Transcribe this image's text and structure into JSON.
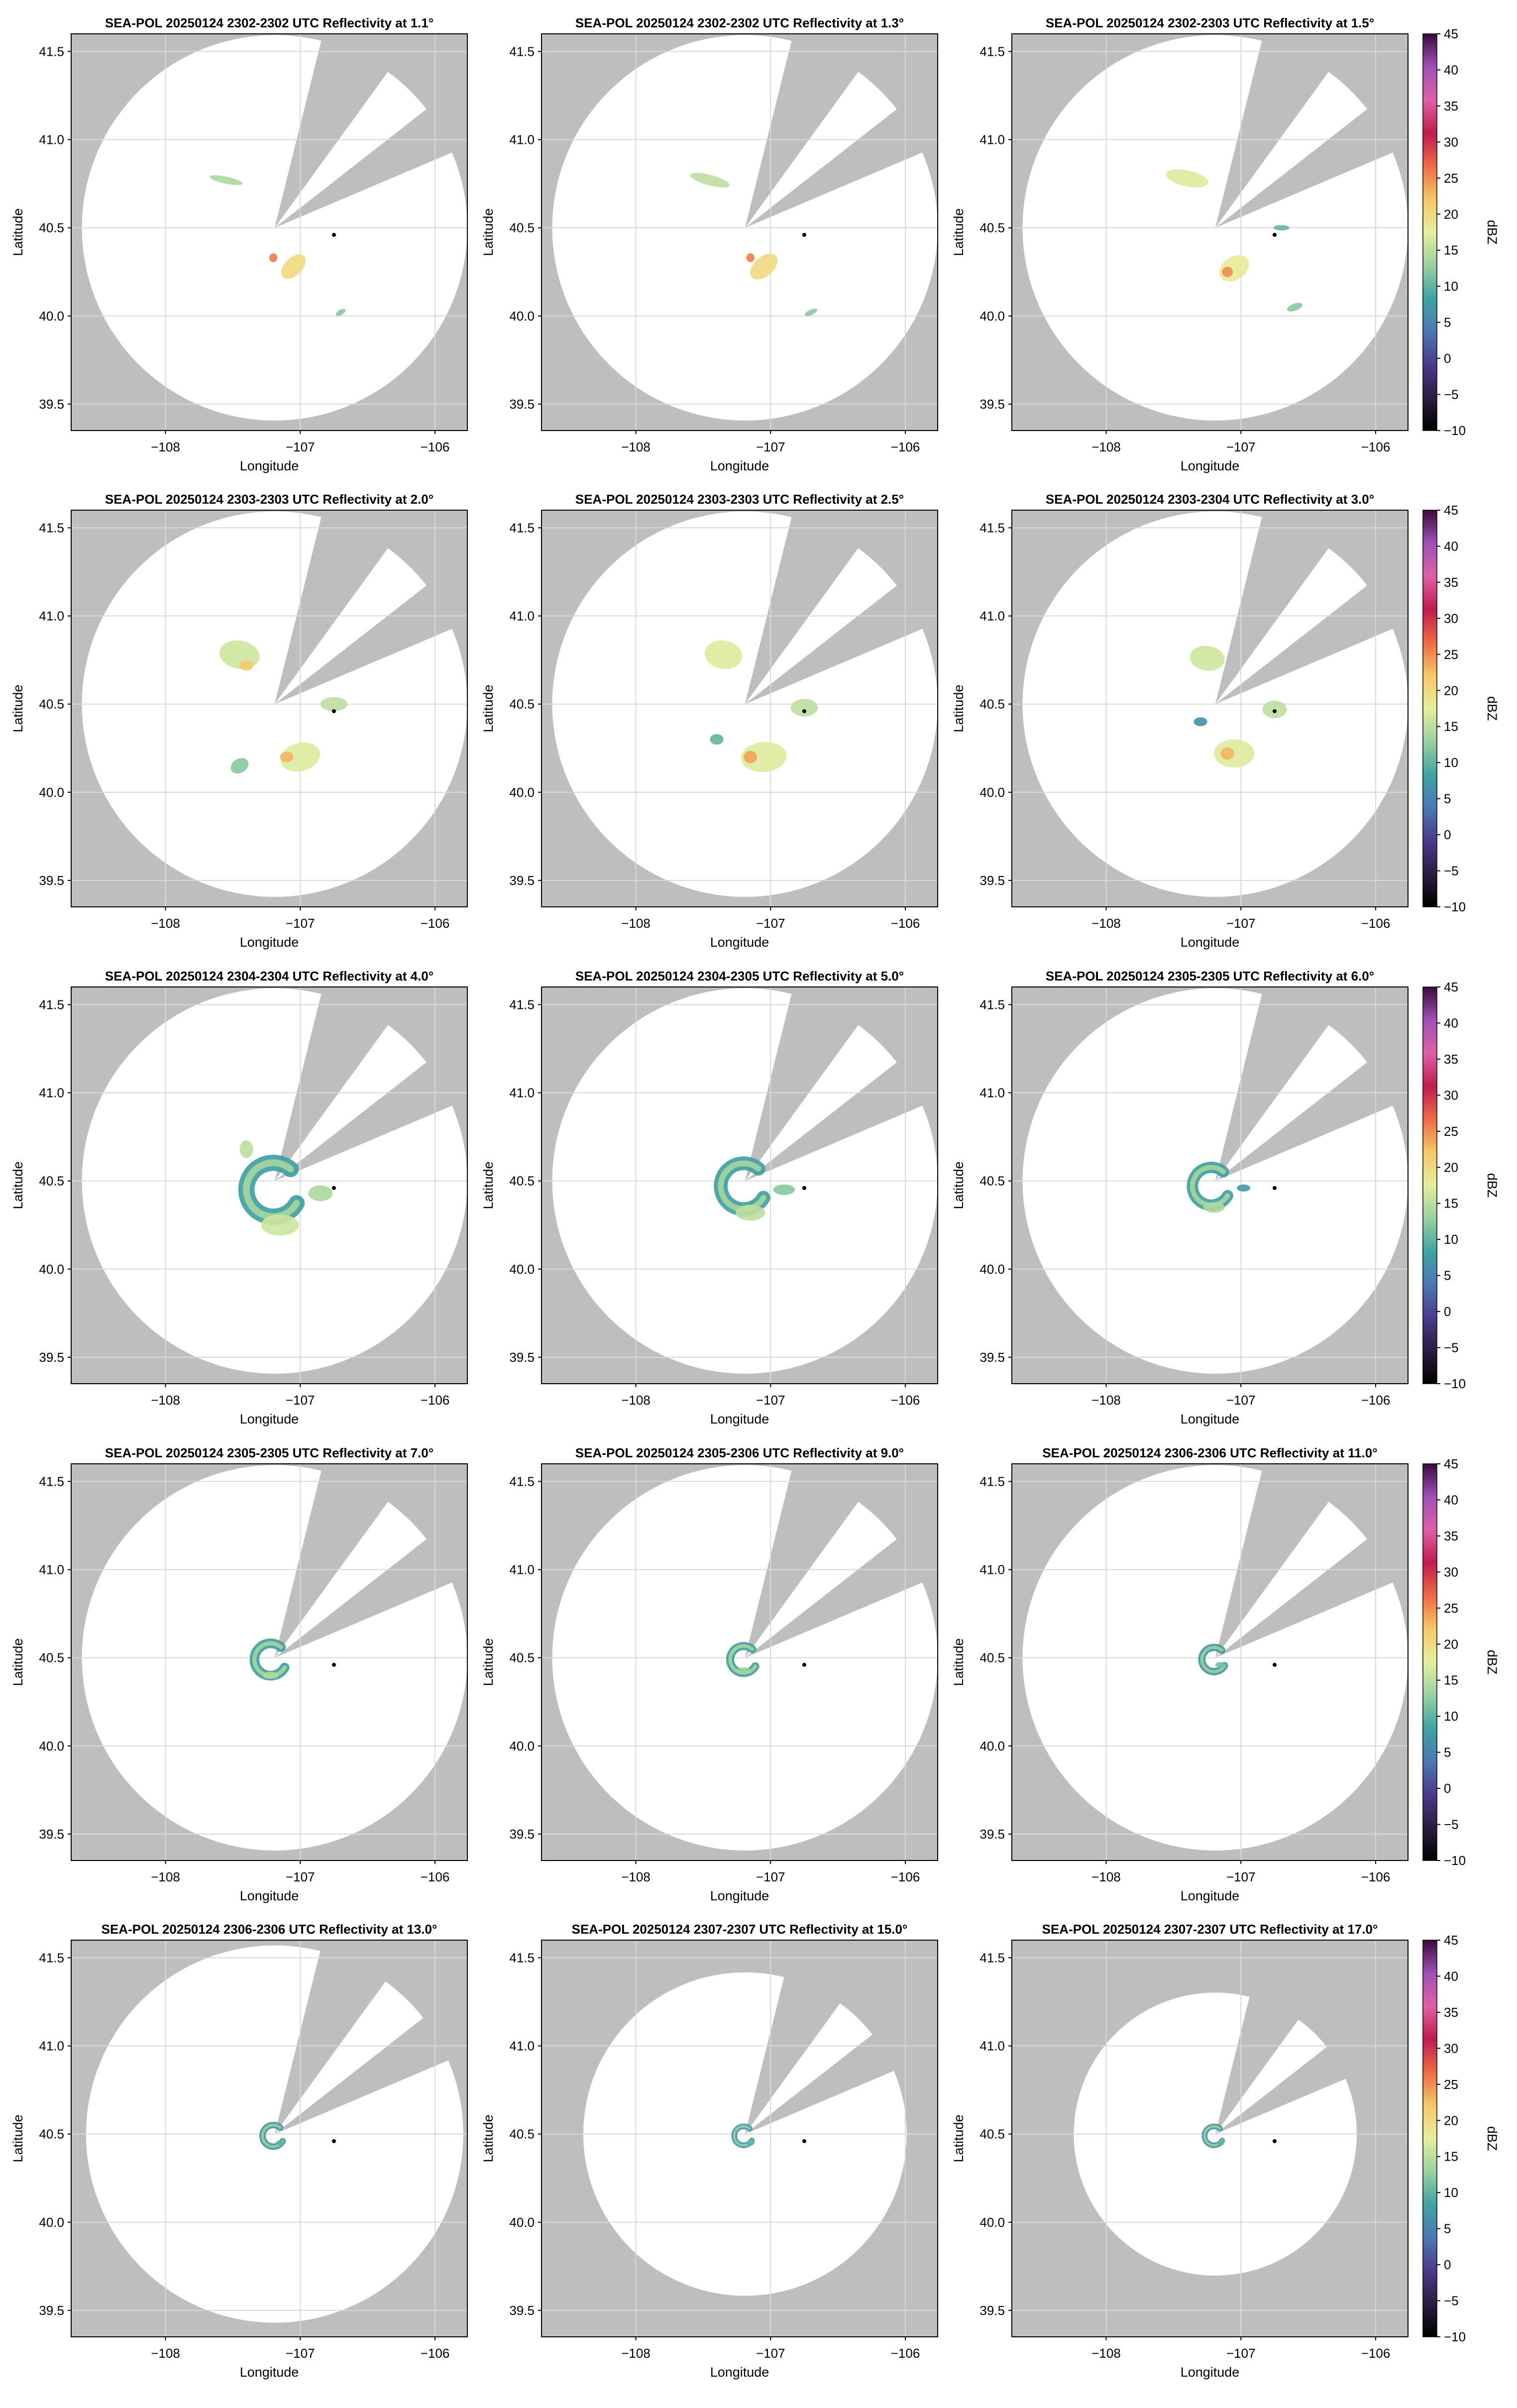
{
  "figure": {
    "background": "#ffffff",
    "outside_color": "#bebebe",
    "inside_color": "#ffffff",
    "grid_color": "#d9d9d9",
    "marker_color": "#000000"
  },
  "chart_data": {
    "type": "heatmap",
    "layout": {
      "rows": 5,
      "cols": 3
    },
    "radar_site": {
      "lon": -107.19,
      "lat": 40.5
    },
    "marker": {
      "lon": -106.75,
      "lat": 40.46
    },
    "blocked_sector_deg": [
      [
        14,
        36
      ],
      [
        52,
        67
      ]
    ],
    "xlabel": "Longitude",
    "ylabel": "Latitude",
    "xlim": [
      -108.7,
      -105.76
    ],
    "ylim": [
      39.35,
      41.6
    ],
    "xticks": [
      -108,
      -107,
      -106
    ],
    "xticklabels": [
      "−108",
      "−107",
      "−106"
    ],
    "yticks": [
      39.5,
      40.0,
      40.5,
      41.0,
      41.5
    ],
    "yticklabels": [
      "39.5",
      "40.0",
      "40.5",
      "41.0",
      "41.5"
    ],
    "grid": true,
    "colorbar": {
      "label": "dBZ",
      "vmin": -10,
      "vmax": 45,
      "ticks": [
        -10,
        -5,
        0,
        5,
        10,
        15,
        20,
        25,
        30,
        35,
        40,
        45
      ],
      "ticklabels": [
        "−10",
        "−5",
        "0",
        "5",
        "10",
        "15",
        "20",
        "25",
        "30",
        "35",
        "40",
        "45"
      ],
      "colors": [
        "#000000",
        "#2b1d3f",
        "#4b3a8f",
        "#4a78b5",
        "#3fa3a2",
        "#9ad1a0",
        "#e6ee9c",
        "#f6c869",
        "#ee6a44",
        "#c01b4f",
        "#dd61a4",
        "#a050b8",
        "#3a0b3a"
      ]
    },
    "panels": [
      {
        "title": "SEA-POL 20250124 2302-2302 UTC Reflectivity at 1.1°",
        "elevation_deg": 1.1,
        "range_deg": 1.43,
        "echoes": [
          {
            "lon": -107.05,
            "lat": 40.28,
            "w": 0.22,
            "h": 0.1,
            "rot": -45,
            "dbz": 20
          },
          {
            "lon": -107.2,
            "lat": 40.33,
            "w": 0.06,
            "h": 0.05,
            "rot": 0,
            "dbz": 26
          },
          {
            "lon": -107.55,
            "lat": 40.77,
            "w": 0.25,
            "h": 0.04,
            "rot": 12,
            "dbz": 14
          },
          {
            "lon": -106.7,
            "lat": 40.02,
            "w": 0.08,
            "h": 0.03,
            "rot": -30,
            "dbz": 12
          }
        ]
      },
      {
        "title": "SEA-POL 20250124 2302-2302 UTC Reflectivity at 1.3°",
        "elevation_deg": 1.3,
        "range_deg": 1.43,
        "echoes": [
          {
            "lon": -107.05,
            "lat": 40.28,
            "w": 0.24,
            "h": 0.11,
            "rot": -42,
            "dbz": 20
          },
          {
            "lon": -107.15,
            "lat": 40.33,
            "w": 0.06,
            "h": 0.05,
            "rot": 0,
            "dbz": 26
          },
          {
            "lon": -107.45,
            "lat": 40.77,
            "w": 0.3,
            "h": 0.06,
            "rot": 15,
            "dbz": 15
          },
          {
            "lon": -106.7,
            "lat": 40.02,
            "w": 0.1,
            "h": 0.03,
            "rot": -25,
            "dbz": 12
          }
        ]
      },
      {
        "title": "SEA-POL 20250124 2302-2303 UTC Reflectivity at 1.5°",
        "elevation_deg": 1.5,
        "range_deg": 1.43,
        "echoes": [
          {
            "lon": -107.05,
            "lat": 40.27,
            "w": 0.24,
            "h": 0.13,
            "rot": -35,
            "dbz": 18
          },
          {
            "lon": -107.1,
            "lat": 40.25,
            "w": 0.08,
            "h": 0.06,
            "rot": 0,
            "dbz": 25
          },
          {
            "lon": -107.4,
            "lat": 40.78,
            "w": 0.32,
            "h": 0.09,
            "rot": 12,
            "dbz": 17
          },
          {
            "lon": -106.7,
            "lat": 40.5,
            "w": 0.12,
            "h": 0.03,
            "rot": 0,
            "dbz": 10
          },
          {
            "lon": -106.6,
            "lat": 40.05,
            "w": 0.12,
            "h": 0.04,
            "rot": -20,
            "dbz": 12
          }
        ]
      },
      {
        "title": "SEA-POL 20250124 2303-2303 UTC Reflectivity at 2.0°",
        "elevation_deg": 2.0,
        "range_deg": 1.43,
        "echoes": [
          {
            "lon": -107.45,
            "lat": 40.78,
            "w": 0.3,
            "h": 0.16,
            "rot": 10,
            "dbz": 16
          },
          {
            "lon": -107.4,
            "lat": 40.72,
            "w": 0.1,
            "h": 0.06,
            "rot": 0,
            "dbz": 22
          },
          {
            "lon": -106.75,
            "lat": 40.5,
            "w": 0.2,
            "h": 0.08,
            "rot": 0,
            "dbz": 15
          },
          {
            "lon": -107.0,
            "lat": 40.2,
            "w": 0.3,
            "h": 0.16,
            "rot": -15,
            "dbz": 17
          },
          {
            "lon": -107.1,
            "lat": 40.2,
            "w": 0.1,
            "h": 0.06,
            "rot": 0,
            "dbz": 23
          },
          {
            "lon": -107.45,
            "lat": 40.15,
            "w": 0.14,
            "h": 0.08,
            "rot": -30,
            "dbz": 12
          }
        ]
      },
      {
        "title": "SEA-POL 20250124 2303-2303 UTC Reflectivity at 2.5°",
        "elevation_deg": 2.5,
        "range_deg": 1.43,
        "echoes": [
          {
            "lon": -107.35,
            "lat": 40.78,
            "w": 0.28,
            "h": 0.16,
            "rot": 10,
            "dbz": 17
          },
          {
            "lon": -106.75,
            "lat": 40.48,
            "w": 0.2,
            "h": 0.1,
            "rot": 0,
            "dbz": 15
          },
          {
            "lon": -107.05,
            "lat": 40.2,
            "w": 0.34,
            "h": 0.17,
            "rot": -5,
            "dbz": 17
          },
          {
            "lon": -107.15,
            "lat": 40.2,
            "w": 0.1,
            "h": 0.07,
            "rot": 0,
            "dbz": 24
          },
          {
            "lon": -107.4,
            "lat": 40.3,
            "w": 0.1,
            "h": 0.06,
            "rot": 0,
            "dbz": 10
          }
        ]
      },
      {
        "title": "SEA-POL 20250124 2303-2304 UTC Reflectivity at 3.0°",
        "elevation_deg": 3.0,
        "range_deg": 1.43,
        "echoes": [
          {
            "lon": -107.25,
            "lat": 40.76,
            "w": 0.26,
            "h": 0.14,
            "rot": 8,
            "dbz": 16
          },
          {
            "lon": -106.75,
            "lat": 40.47,
            "w": 0.18,
            "h": 0.1,
            "rot": 0,
            "dbz": 15
          },
          {
            "lon": -107.05,
            "lat": 40.22,
            "w": 0.3,
            "h": 0.16,
            "rot": 0,
            "dbz": 17
          },
          {
            "lon": -107.1,
            "lat": 40.22,
            "w": 0.1,
            "h": 0.07,
            "rot": 0,
            "dbz": 23
          },
          {
            "lon": -107.3,
            "lat": 40.4,
            "w": 0.1,
            "h": 0.05,
            "rot": 0,
            "dbz": 6
          }
        ]
      },
      {
        "title": "SEA-POL 20250124 2304-2304 UTC Reflectivity at 4.0°",
        "elevation_deg": 4.0,
        "range_deg": 1.43,
        "echoes": [
          {
            "lon": -107.2,
            "lat": 40.45,
            "ring_r": 0.2,
            "dbz": 8
          },
          {
            "lon": -107.15,
            "lat": 40.25,
            "w": 0.28,
            "h": 0.12,
            "rot": 0,
            "dbz": 16
          },
          {
            "lon": -107.4,
            "lat": 40.68,
            "w": 0.1,
            "h": 0.1,
            "rot": 0,
            "dbz": 15
          },
          {
            "lon": -106.85,
            "lat": 40.43,
            "w": 0.18,
            "h": 0.09,
            "rot": 0,
            "dbz": 14
          }
        ]
      },
      {
        "title": "SEA-POL 20250124 2304-2305 UTC Reflectivity at 5.0°",
        "elevation_deg": 5.0,
        "range_deg": 1.43,
        "echoes": [
          {
            "lon": -107.2,
            "lat": 40.47,
            "ring_r": 0.17,
            "dbz": 8
          },
          {
            "lon": -107.15,
            "lat": 40.32,
            "w": 0.22,
            "h": 0.09,
            "rot": 0,
            "dbz": 15
          },
          {
            "lon": -106.9,
            "lat": 40.45,
            "w": 0.16,
            "h": 0.06,
            "rot": 0,
            "dbz": 12
          }
        ]
      },
      {
        "title": "SEA-POL 20250124 2305-2305 UTC Reflectivity at 6.0°",
        "elevation_deg": 6.0,
        "range_deg": 1.43,
        "echoes": [
          {
            "lon": -107.22,
            "lat": 40.47,
            "ring_r": 0.14,
            "dbz": 8
          },
          {
            "lon": -107.2,
            "lat": 40.35,
            "w": 0.16,
            "h": 0.06,
            "rot": 0,
            "dbz": 14
          },
          {
            "lon": -106.98,
            "lat": 40.46,
            "w": 0.1,
            "h": 0.04,
            "rot": 0,
            "dbz": 7
          }
        ]
      },
      {
        "title": "SEA-POL 20250124 2305-2305 UTC Reflectivity at 7.0°",
        "elevation_deg": 7.0,
        "range_deg": 1.43,
        "echoes": [
          {
            "lon": -107.22,
            "lat": 40.49,
            "ring_r": 0.12,
            "dbz": 8
          },
          {
            "lon": -107.22,
            "lat": 40.4,
            "w": 0.12,
            "h": 0.04,
            "rot": 0,
            "dbz": 14
          }
        ]
      },
      {
        "title": "SEA-POL 20250124 2305-2306 UTC Reflectivity at 9.0°",
        "elevation_deg": 9.0,
        "range_deg": 1.43,
        "echoes": [
          {
            "lon": -107.2,
            "lat": 40.49,
            "ring_r": 0.1,
            "dbz": 8
          },
          {
            "lon": -107.2,
            "lat": 40.43,
            "w": 0.1,
            "h": 0.03,
            "rot": 0,
            "dbz": 13
          }
        ]
      },
      {
        "title": "SEA-POL 20250124 2306-2306 UTC Reflectivity at 11.0°",
        "elevation_deg": 11.0,
        "range_deg": 1.43,
        "echoes": [
          {
            "lon": -107.2,
            "lat": 40.49,
            "ring_r": 0.09,
            "dbz": 7
          },
          {
            "lon": -107.15,
            "lat": 40.46,
            "w": 0.08,
            "h": 0.03,
            "rot": 0,
            "dbz": 11
          }
        ]
      },
      {
        "title": "SEA-POL 20250124 2306-2306 UTC Reflectivity at 13.0°",
        "elevation_deg": 13.0,
        "range_deg": 1.4,
        "echoes": [
          {
            "lon": -107.2,
            "lat": 40.49,
            "ring_r": 0.08,
            "dbz": 7
          },
          {
            "lon": -107.15,
            "lat": 40.45,
            "w": 0.06,
            "h": 0.03,
            "rot": 0,
            "dbz": 10
          }
        ]
      },
      {
        "title": "SEA-POL 20250124 2307-2307 UTC Reflectivity at 15.0°",
        "elevation_deg": 15.0,
        "range_deg": 1.2,
        "echoes": [
          {
            "lon": -107.2,
            "lat": 40.49,
            "ring_r": 0.07,
            "dbz": 7
          },
          {
            "lon": -107.15,
            "lat": 40.45,
            "w": 0.06,
            "h": 0.03,
            "rot": 0,
            "dbz": 10
          }
        ]
      },
      {
        "title": "SEA-POL 20250124 2307-2307 UTC Reflectivity at 17.0°",
        "elevation_deg": 17.0,
        "range_deg": 1.05,
        "echoes": [
          {
            "lon": -107.2,
            "lat": 40.49,
            "ring_r": 0.07,
            "dbz": 7
          },
          {
            "lon": -107.15,
            "lat": 40.45,
            "w": 0.05,
            "h": 0.03,
            "rot": 0,
            "dbz": 10
          }
        ]
      }
    ]
  }
}
